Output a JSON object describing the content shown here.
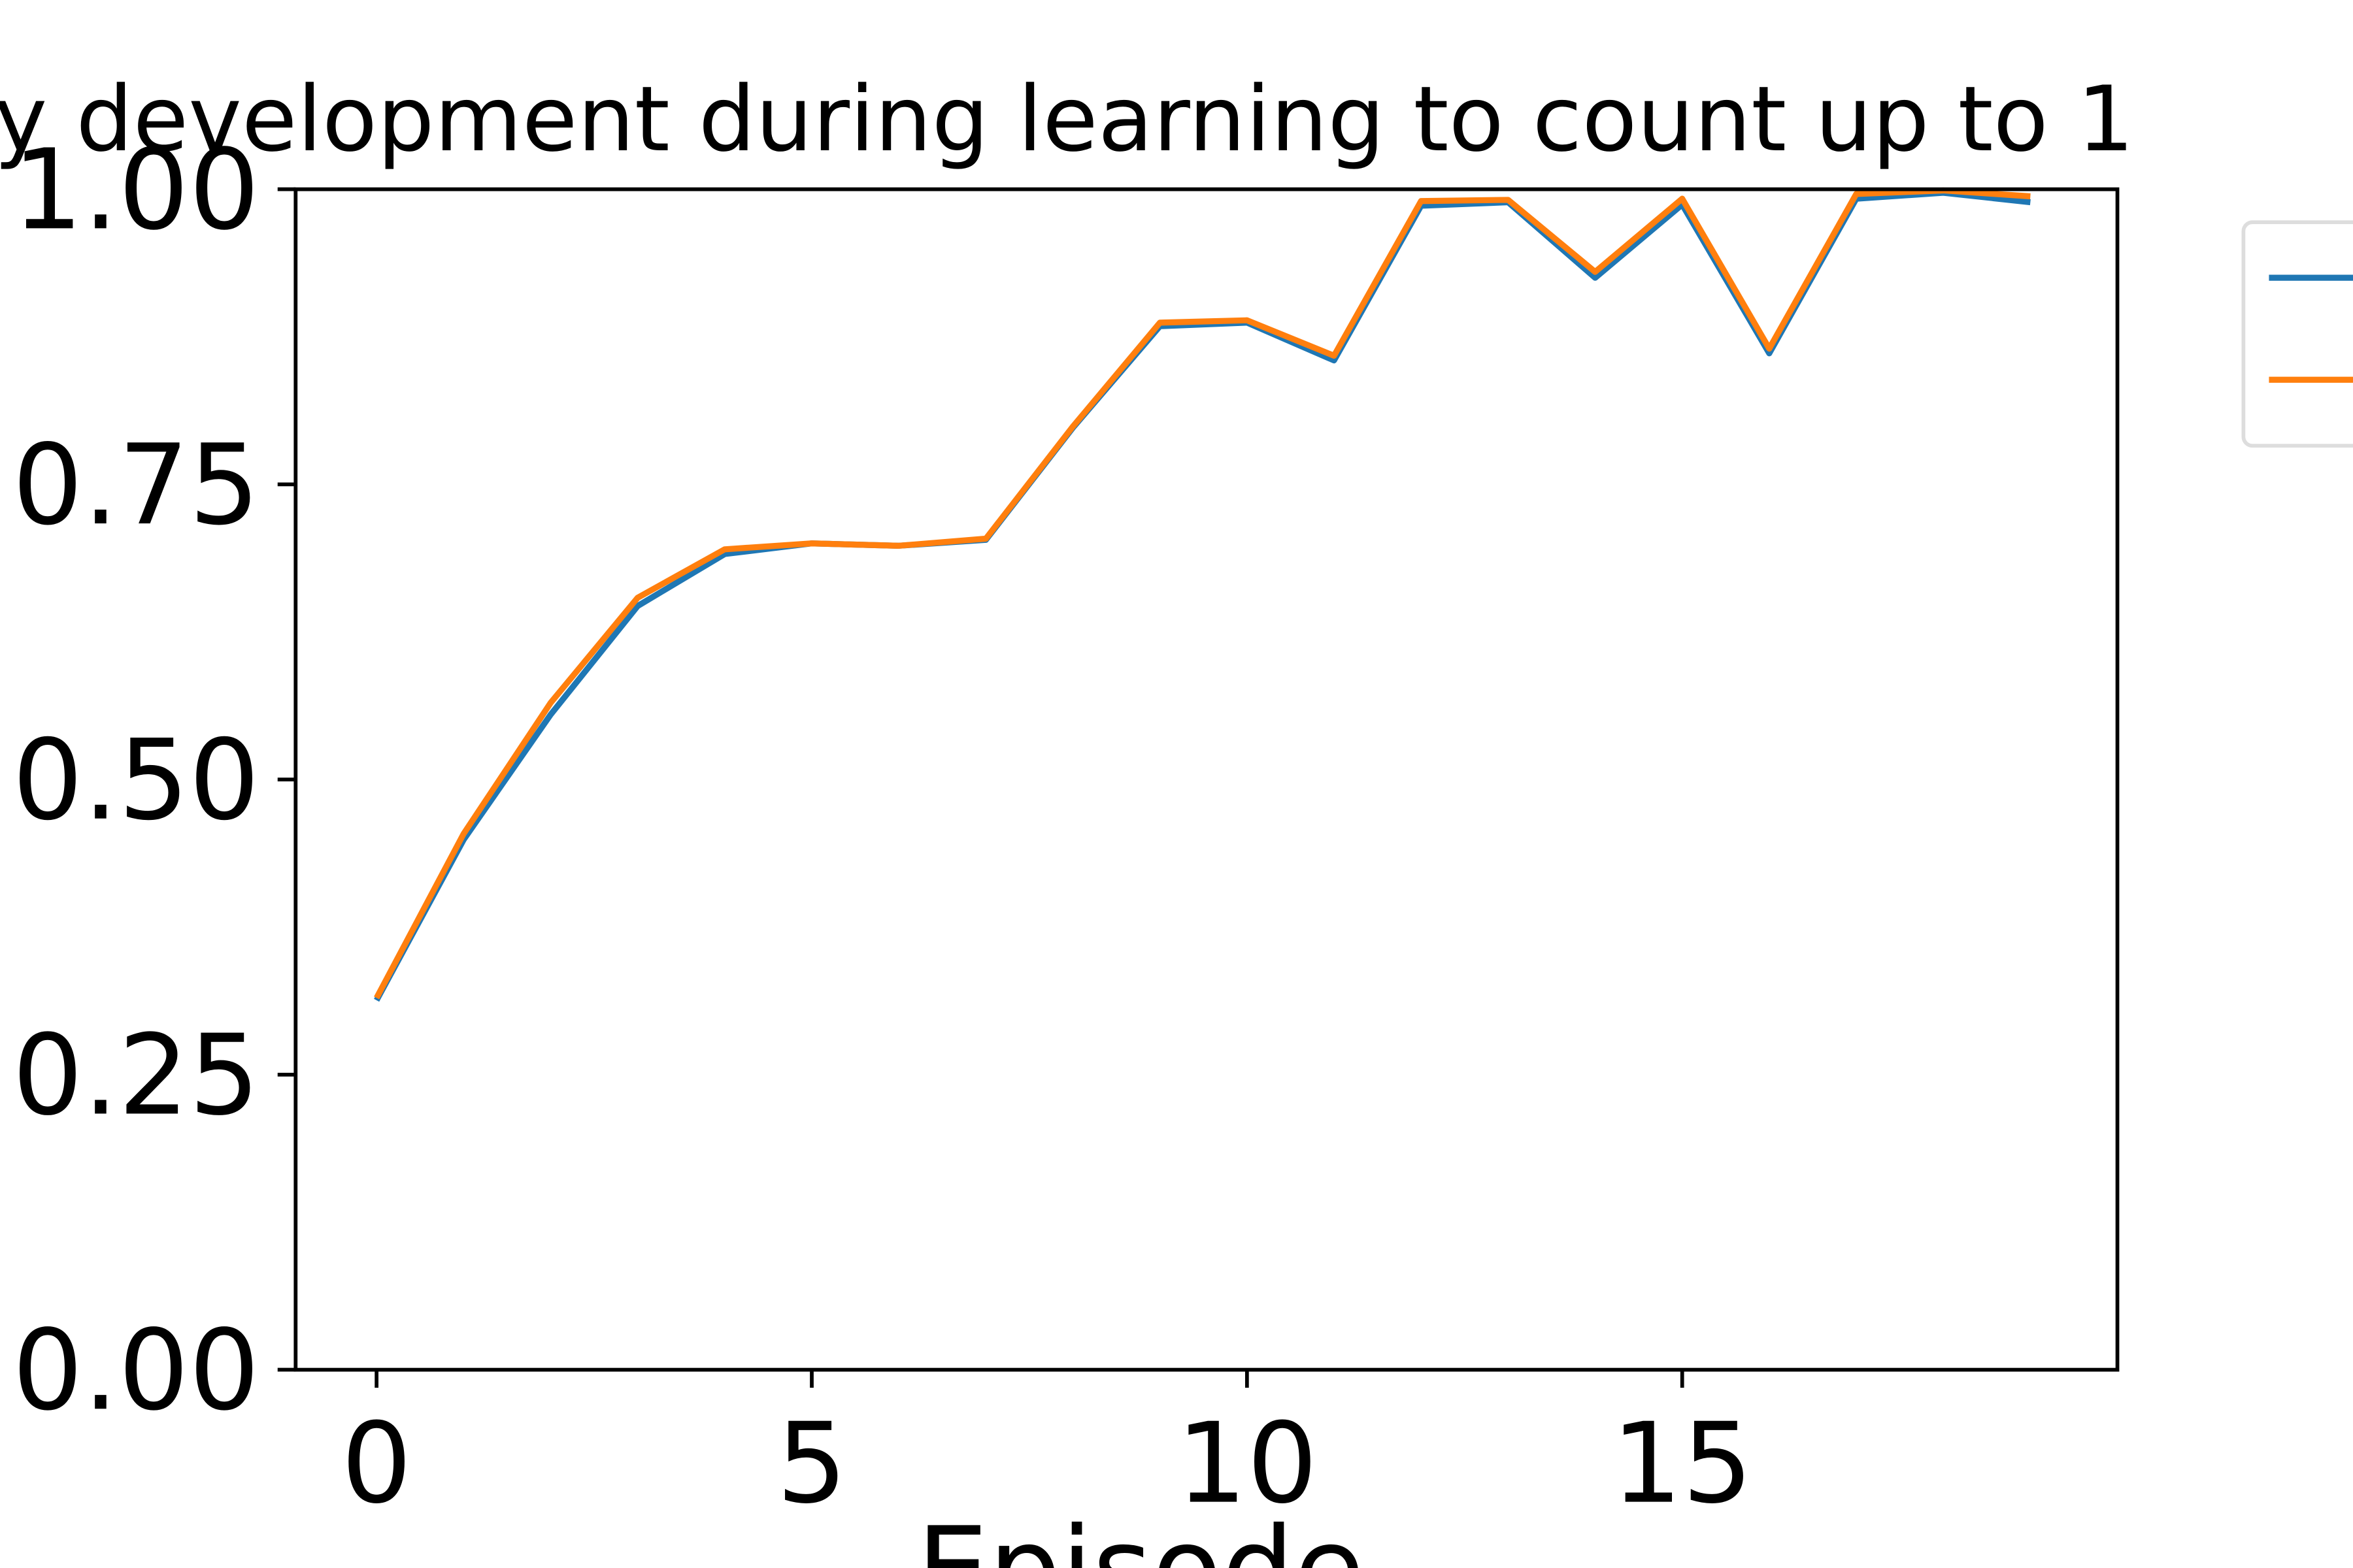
{
  "chart_data": {
    "type": "line",
    "title": "y development during learning to count up to 1",
    "x_label": "Episode",
    "x": [
      0,
      1,
      2,
      3,
      4,
      5,
      6,
      7,
      8,
      9,
      10,
      11,
      12,
      13,
      14,
      15,
      16,
      17,
      18,
      19
    ],
    "series": [
      {
        "color": "#1f77b4",
        "values": [
          0.313,
          0.449,
          0.555,
          0.647,
          0.691,
          0.7,
          0.698,
          0.703,
          0.798,
          0.884,
          0.887,
          0.855,
          0.986,
          0.989,
          0.925,
          0.987,
          0.861,
          0.992,
          0.997,
          0.989
        ]
      },
      {
        "color": "#ff7f0e",
        "values": [
          0.315,
          0.454,
          0.565,
          0.654,
          0.695,
          0.7,
          0.698,
          0.704,
          0.799,
          0.887,
          0.889,
          0.859,
          0.99,
          0.991,
          0.93,
          0.992,
          0.865,
          0.996,
          0.999,
          0.994
        ]
      }
    ],
    "xlim": [
      -0.93,
      20.0
    ],
    "ylim": [
      0,
      1
    ],
    "xticks": [
      0,
      5,
      10,
      15
    ],
    "yticks": [
      {
        "value": 0,
        "label": "0.00"
      },
      {
        "value": 0.25,
        "label": "0.25"
      },
      {
        "value": 0.5,
        "label": "0.50"
      },
      {
        "value": 0.75,
        "label": "0.75"
      },
      {
        "value": 1,
        "label": "1.00"
      }
    ],
    "legend": "outside right",
    "grid": false
  }
}
